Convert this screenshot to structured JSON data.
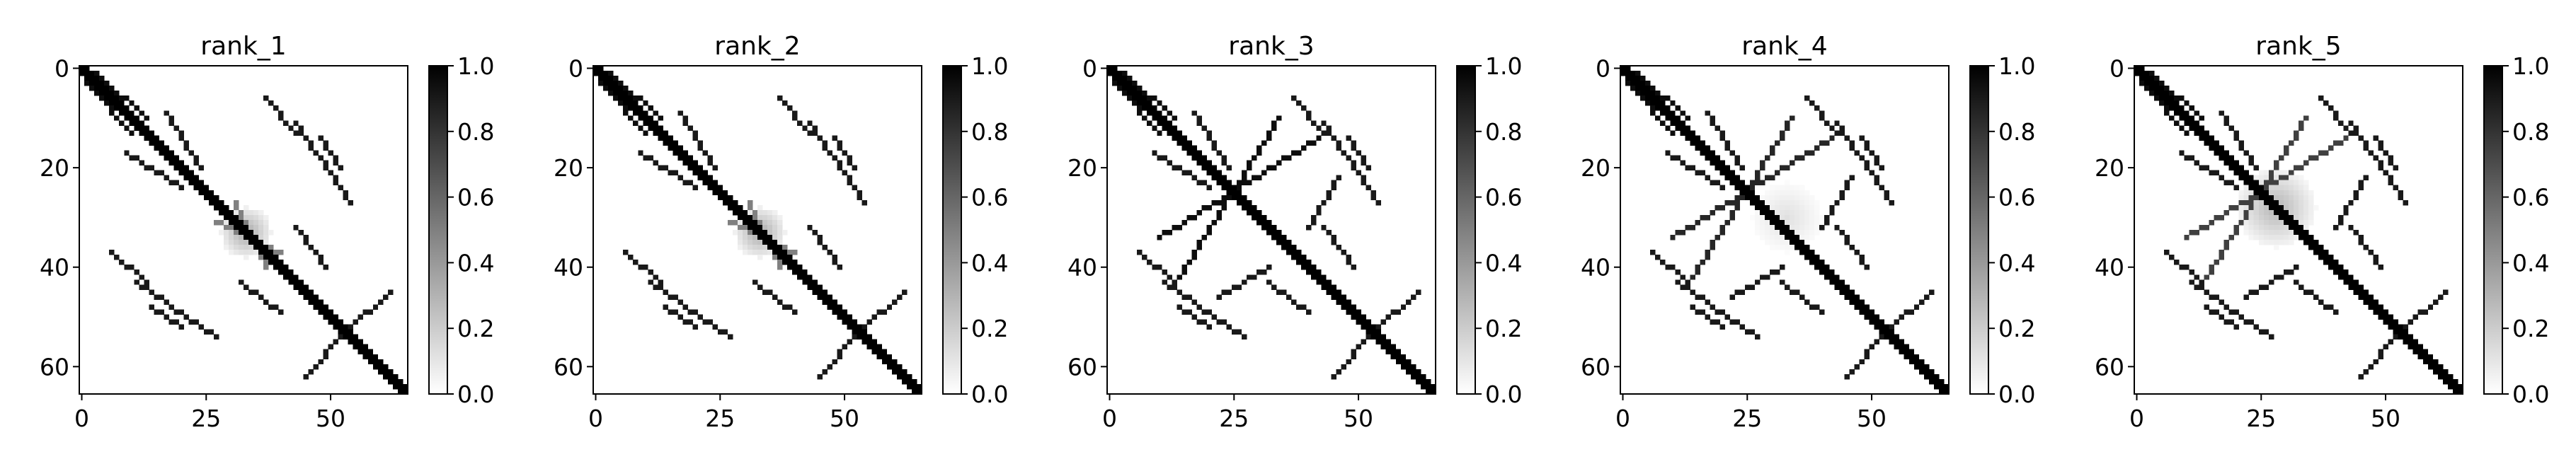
{
  "chart_data": [
    {
      "type": "heatmap",
      "title": "rank_1",
      "size": 66,
      "colormap": "Greys",
      "xticks": [
        0,
        25,
        50
      ],
      "yticks": [
        0,
        20,
        40,
        60
      ],
      "colorbar": {
        "ticks": [
          "0.0",
          "0.2",
          "0.4",
          "0.6",
          "0.8",
          "1.0"
        ],
        "range": [
          0,
          1
        ]
      },
      "arcs": [
        {
          "from": [
            1,
            3
          ],
          "to": [
            10,
            13
          ],
          "value": 0.95
        },
        {
          "from": [
            9,
            17
          ],
          "to": [
            20,
            24
          ],
          "value": 0.9
        },
        {
          "from": [
            11,
            43
          ],
          "to": [
            27,
            54
          ],
          "value": 0.9
        },
        {
          "from": [
            27,
            31
          ],
          "to": [
            40,
            37
          ],
          "value": 0.5
        },
        {
          "from": [
            37,
            6
          ],
          "to": [
            43,
            13
          ],
          "value": 0.9
        },
        {
          "from": [
            43,
            32
          ],
          "to": [
            49,
            40
          ],
          "value": 0.9
        },
        {
          "from": [
            48,
            14
          ],
          "to": [
            52,
            20
          ],
          "value": 0.9
        },
        {
          "from": [
            54,
            52
          ],
          "to": [
            62,
            45
          ],
          "value": 0.9
        }
      ],
      "blobs": [
        {
          "center": [
            33,
            33
          ],
          "radius": 5,
          "value": 0.35
        }
      ]
    },
    {
      "type": "heatmap",
      "title": "rank_2",
      "size": 66,
      "colormap": "Greys",
      "xticks": [
        0,
        25,
        50
      ],
      "yticks": [
        0,
        20,
        40,
        60
      ],
      "colorbar": {
        "ticks": [
          "0.0",
          "0.2",
          "0.4",
          "0.6",
          "0.8",
          "1.0"
        ],
        "range": [
          0,
          1
        ]
      },
      "arcs": [
        {
          "from": [
            1,
            3
          ],
          "to": [
            10,
            13
          ],
          "value": 0.95
        },
        {
          "from": [
            9,
            17
          ],
          "to": [
            20,
            24
          ],
          "value": 0.9
        },
        {
          "from": [
            11,
            43
          ],
          "to": [
            27,
            54
          ],
          "value": 0.9
        },
        {
          "from": [
            27,
            31
          ],
          "to": [
            40,
            37
          ],
          "value": 0.5
        },
        {
          "from": [
            37,
            6
          ],
          "to": [
            43,
            13
          ],
          "value": 0.9
        },
        {
          "from": [
            43,
            32
          ],
          "to": [
            49,
            40
          ],
          "value": 0.9
        },
        {
          "from": [
            48,
            14
          ],
          "to": [
            52,
            20
          ],
          "value": 0.9
        },
        {
          "from": [
            54,
            52
          ],
          "to": [
            62,
            45
          ],
          "value": 0.9
        }
      ],
      "blobs": [
        {
          "center": [
            33,
            33
          ],
          "radius": 5,
          "value": 0.35
        }
      ]
    },
    {
      "type": "heatmap",
      "title": "rank_3",
      "size": 66,
      "colormap": "Greys",
      "xticks": [
        0,
        25,
        50
      ],
      "yticks": [
        0,
        20,
        40,
        60
      ],
      "colorbar": {
        "ticks": [
          "0.0",
          "0.2",
          "0.4",
          "0.6",
          "0.8",
          "1.0"
        ],
        "range": [
          0,
          1
        ]
      },
      "arcs": [
        {
          "from": [
            1,
            3
          ],
          "to": [
            10,
            13
          ],
          "value": 0.95
        },
        {
          "from": [
            9,
            17
          ],
          "to": [
            20,
            24
          ],
          "value": 0.9
        },
        {
          "from": [
            11,
            43
          ],
          "to": [
            27,
            54
          ],
          "value": 0.9
        },
        {
          "from": [
            14,
            42
          ],
          "to": [
            34,
            10
          ],
          "value": 0.95
        },
        {
          "from": [
            22,
            46
          ],
          "to": [
            32,
            40
          ],
          "value": 0.9
        },
        {
          "from": [
            37,
            6
          ],
          "to": [
            43,
            13
          ],
          "value": 0.9
        },
        {
          "from": [
            43,
            32
          ],
          "to": [
            49,
            40
          ],
          "value": 0.9
        },
        {
          "from": [
            48,
            14
          ],
          "to": [
            52,
            20
          ],
          "value": 0.9
        },
        {
          "from": [
            54,
            52
          ],
          "to": [
            62,
            45
          ],
          "value": 0.9
        }
      ],
      "blobs": []
    },
    {
      "type": "heatmap",
      "title": "rank_4",
      "size": 66,
      "colormap": "Greys",
      "xticks": [
        0,
        25,
        50
      ],
      "yticks": [
        0,
        20,
        40,
        60
      ],
      "colorbar": {
        "ticks": [
          "0.0",
          "0.2",
          "0.4",
          "0.6",
          "0.8",
          "1.0"
        ],
        "range": [
          0,
          1
        ]
      },
      "arcs": [
        {
          "from": [
            1,
            3
          ],
          "to": [
            10,
            13
          ],
          "value": 0.95
        },
        {
          "from": [
            9,
            17
          ],
          "to": [
            20,
            24
          ],
          "value": 0.9
        },
        {
          "from": [
            11,
            43
          ],
          "to": [
            27,
            54
          ],
          "value": 0.9
        },
        {
          "from": [
            14,
            42
          ],
          "to": [
            34,
            10
          ],
          "value": 0.85
        },
        {
          "from": [
            22,
            46
          ],
          "to": [
            32,
            40
          ],
          "value": 0.9
        },
        {
          "from": [
            37,
            6
          ],
          "to": [
            43,
            13
          ],
          "value": 0.9
        },
        {
          "from": [
            43,
            32
          ],
          "to": [
            49,
            40
          ],
          "value": 0.9
        },
        {
          "from": [
            48,
            14
          ],
          "to": [
            52,
            20
          ],
          "value": 0.9
        },
        {
          "from": [
            54,
            52
          ],
          "to": [
            62,
            45
          ],
          "value": 0.9
        }
      ],
      "blobs": [
        {
          "center": [
            30,
            33
          ],
          "radius": 7,
          "value": 0.12
        }
      ]
    },
    {
      "type": "heatmap",
      "title": "rank_5",
      "size": 66,
      "colormap": "Greys",
      "xticks": [
        0,
        25,
        50
      ],
      "yticks": [
        0,
        20,
        40,
        60
      ],
      "colorbar": {
        "ticks": [
          "0.0",
          "0.2",
          "0.4",
          "0.6",
          "0.8",
          "1.0"
        ],
        "range": [
          0,
          1
        ]
      },
      "arcs": [
        {
          "from": [
            1,
            3
          ],
          "to": [
            10,
            13
          ],
          "value": 0.95
        },
        {
          "from": [
            9,
            17
          ],
          "to": [
            20,
            24
          ],
          "value": 0.9
        },
        {
          "from": [
            11,
            43
          ],
          "to": [
            27,
            54
          ],
          "value": 0.9
        },
        {
          "from": [
            14,
            42
          ],
          "to": [
            34,
            10
          ],
          "value": 0.75
        },
        {
          "from": [
            22,
            46
          ],
          "to": [
            32,
            40
          ],
          "value": 0.9
        },
        {
          "from": [
            37,
            6
          ],
          "to": [
            43,
            13
          ],
          "value": 0.9
        },
        {
          "from": [
            43,
            32
          ],
          "to": [
            49,
            40
          ],
          "value": 0.9
        },
        {
          "from": [
            48,
            14
          ],
          "to": [
            52,
            20
          ],
          "value": 0.9
        },
        {
          "from": [
            54,
            52
          ],
          "to": [
            62,
            45
          ],
          "value": 0.9
        }
      ],
      "blobs": [
        {
          "center": [
            28,
            28
          ],
          "radius": 8,
          "value": 0.3
        }
      ]
    }
  ]
}
